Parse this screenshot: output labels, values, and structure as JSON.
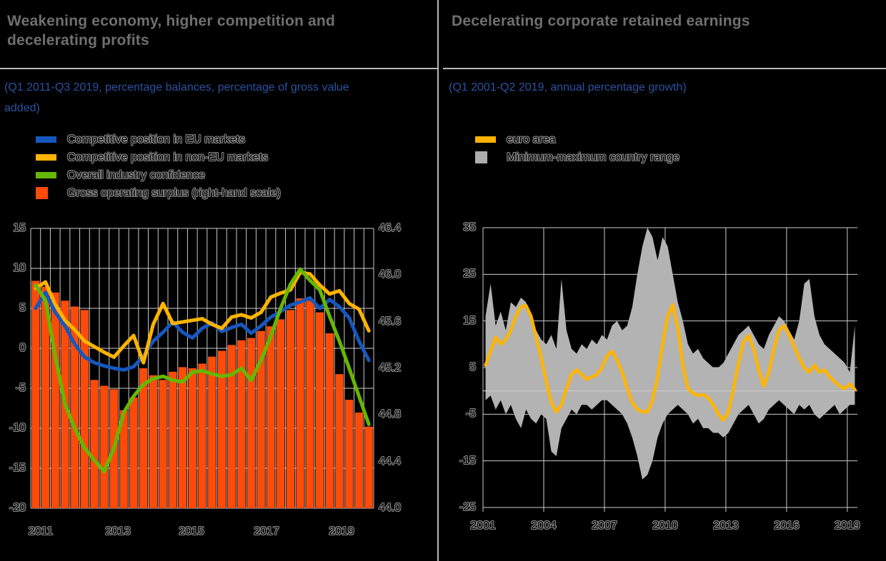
{
  "colors": {
    "background": "#000000",
    "title_gray": "#6F6F6F",
    "subtitle_blue": "#2B52A0",
    "separator": "#B9B9B9",
    "grid": "#CBCBCB",
    "blue_line": "#1657BE",
    "yellow_line": "#FFB400",
    "green_line": "#65B800",
    "orange_bar": "#FF4B0A",
    "gray_band": "#B3B3B3",
    "legend_gray_swatch": "#ADADAD",
    "hollow_text_outline": "#8C8C8C"
  },
  "left_panel": {
    "title": "Weakening economy, higher competition and decelerating profits",
    "subtitle": "(Q1 2011-Q3 2019, percentage balances, percentage of gross value added)",
    "legend": [
      {
        "label": "Competitive position in EU markets",
        "swatch": "line",
        "color": "#1657BE"
      },
      {
        "label": "Competitive position in non-EU markets",
        "swatch": "line",
        "color": "#FFB400"
      },
      {
        "label": "Overall industry confidence",
        "swatch": "line",
        "color": "#65B800"
      },
      {
        "label": "Gross operating surplus (right-hand scale)",
        "swatch": "square",
        "color": "#FF4B0A"
      }
    ],
    "chart_data": {
      "type": "combo-bar-line",
      "x_start": "2011-Q1",
      "x_end": "2019-Q3",
      "frequency": "quarterly",
      "x_tick_labels": [
        "2011",
        "2013",
        "2015",
        "2017",
        "2019"
      ],
      "left_axis": {
        "tick_labels": [
          "15",
          "10",
          "5",
          "0",
          "-5",
          "-10",
          "-15",
          "-20"
        ],
        "max": 15,
        "min": -20,
        "grid": true
      },
      "right_axis": {
        "tick_labels": [
          "46.4",
          "46.0",
          "45.6",
          "45.2",
          "44.8",
          "44.4",
          "44.0"
        ],
        "max": 46.4,
        "min": 44.0
      },
      "series": [
        {
          "name": "Gross operating surplus (right-hand scale)",
          "type": "bar",
          "axis": "right",
          "color": "#FF4B0A",
          "values": [
            45.95,
            45.9,
            45.85,
            45.78,
            45.73,
            45.7,
            45.1,
            45.05,
            45.02,
            44.84,
            44.95,
            45.2,
            45.14,
            45.1,
            45.17,
            45.21,
            45.2,
            45.24,
            45.3,
            45.35,
            45.4,
            45.44,
            45.46,
            45.52,
            45.56,
            45.62,
            45.7,
            45.8,
            45.78,
            45.68,
            45.5,
            45.15,
            44.93,
            44.82,
            44.7
          ]
        },
        {
          "name": "Competitive position in EU markets",
          "type": "line",
          "axis": "left",
          "color": "#1657BE",
          "values": [
            5.0,
            7.0,
            4.5,
            2.8,
            0.5,
            -1.1,
            -1.8,
            -2.2,
            -2.5,
            -2.7,
            -2.3,
            -1.0,
            0.9,
            2.0,
            3.3,
            2.0,
            1.3,
            2.5,
            3.2,
            2.1,
            2.6,
            3.0,
            1.9,
            2.8,
            3.9,
            4.6,
            5.4,
            5.8,
            6.3,
            5.0,
            6.1,
            5.2,
            3.8,
            0.9,
            -1.5
          ]
        },
        {
          "name": "Competitive position in non-EU markets",
          "type": "line",
          "axis": "left",
          "color": "#FFB400",
          "values": [
            7.5,
            8.3,
            5.5,
            3.5,
            2.3,
            0.9,
            0.2,
            -0.5,
            -1.1,
            0.3,
            1.6,
            -1.8,
            3.0,
            5.6,
            3.1,
            3.3,
            3.5,
            3.7,
            3.0,
            2.5,
            3.9,
            4.2,
            3.8,
            4.5,
            6.4,
            6.9,
            7.3,
            9.5,
            9.3,
            7.9,
            6.8,
            7.2,
            5.6,
            4.9,
            2.2
          ]
        },
        {
          "name": "Overall industry confidence",
          "type": "line",
          "axis": "left",
          "color": "#65B800",
          "values": [
            7.9,
            6.0,
            -1.0,
            -7.0,
            -10.0,
            -12.5,
            -14.0,
            -15.4,
            -12.5,
            -8.0,
            -6.0,
            -4.5,
            -3.8,
            -3.5,
            -4.0,
            -4.2,
            -3.0,
            -2.8,
            -3.2,
            -3.5,
            -3.3,
            -2.5,
            -4.0,
            -1.5,
            1.5,
            5.0,
            8.0,
            9.9,
            8.5,
            7.3,
            4.0,
            0.9,
            -2.5,
            -6.0,
            -9.5
          ]
        }
      ]
    }
  },
  "right_panel": {
    "title": "Decelerating corporate retained earnings",
    "subtitle": "(Q1 2001-Q2 2019, annual percentage growth)",
    "legend": [
      {
        "label": "euro area",
        "swatch": "line",
        "color": "#FFB400"
      },
      {
        "label": "Minimum-maximum country range",
        "swatch": "square",
        "color": "#ADADAD"
      }
    ],
    "chart_data": {
      "type": "line-with-band",
      "x_start": "2001-Q1",
      "x_end": "2019-Q2",
      "frequency": "quarterly",
      "x_tick_labels": [
        "2001",
        "2004",
        "2007",
        "2010",
        "2013",
        "2016",
        "2019"
      ],
      "y_axis": {
        "tick_labels": [
          "35",
          "25",
          "15",
          "5",
          "-5",
          "-15",
          "-25"
        ],
        "max": 35,
        "min": -25,
        "grid": true,
        "zero_line": true
      },
      "series": [
        {
          "name": "euro area",
          "type": "line",
          "color": "#FFB400",
          "values": [
            5.5,
            8.5,
            11.5,
            10.0,
            11.0,
            13.0,
            16.0,
            18.0,
            18.3,
            16.0,
            11.5,
            7.0,
            2.0,
            -2.5,
            -4.5,
            -3.0,
            0.5,
            3.5,
            4.5,
            3.5,
            2.5,
            3.0,
            3.5,
            5.0,
            7.5,
            8.5,
            6.5,
            4.0,
            0.5,
            -2.5,
            -4.0,
            -4.5,
            -4.5,
            -2.0,
            3.0,
            10.0,
            16.0,
            18.5,
            13.5,
            5.5,
            0.5,
            -0.5,
            -1.0,
            -0.8,
            -1.5,
            -3.0,
            -5.0,
            -6.3,
            -4.5,
            0.5,
            6.0,
            10.5,
            11.9,
            9.0,
            4.5,
            1.0,
            4.0,
            9.0,
            13.0,
            14.0,
            12.0,
            9.5,
            7.0,
            5.0,
            4.0,
            5.5,
            4.0,
            4.5,
            3.0,
            2.0,
            1.0,
            0.5,
            1.5,
            0.3
          ]
        },
        {
          "name": "Minimum-maximum country range (max)",
          "type": "band-upper",
          "color": "#B3B3B3",
          "values": [
            16,
            23,
            14,
            17,
            13,
            19,
            18,
            20,
            19,
            16,
            13,
            11,
            10,
            12,
            9,
            24,
            13,
            9,
            8,
            10,
            9,
            11,
            10,
            12,
            11,
            14,
            15,
            13,
            14,
            18,
            25,
            31,
            35,
            33,
            28,
            33,
            31,
            25,
            19,
            15,
            10,
            8,
            9,
            7,
            6,
            5,
            5,
            6,
            8,
            10,
            12,
            13,
            14,
            12,
            10,
            9,
            12,
            14,
            16,
            15,
            13,
            11,
            15,
            23,
            24,
            16,
            12,
            10,
            9,
            8,
            7,
            6,
            4,
            14
          ]
        },
        {
          "name": "Minimum-maximum country range (min)",
          "type": "band-lower",
          "color": "#B3B3B3",
          "values": [
            -2,
            -1,
            -4,
            -2,
            -5,
            -3,
            -6,
            -8,
            -4,
            -6,
            -7,
            -5,
            -6,
            -13,
            -14,
            -8,
            -6,
            -4,
            -5,
            -3,
            -3,
            -4,
            -3,
            -2,
            -2,
            -3,
            -4,
            -5,
            -7,
            -10,
            -14,
            -19,
            -18,
            -15,
            -10,
            -7,
            -5,
            -4,
            -3,
            -4,
            -5,
            -7,
            -6,
            -8,
            -8,
            -9,
            -9,
            -10,
            -9,
            -7,
            -5,
            -4,
            -3,
            -5,
            -7,
            -6,
            -4,
            -3,
            -2,
            -3,
            -4,
            -5,
            -3,
            -4,
            -3,
            -5,
            -6,
            -5,
            -4,
            -3,
            -5,
            -4,
            -3,
            -3
          ]
        }
      ]
    }
  }
}
